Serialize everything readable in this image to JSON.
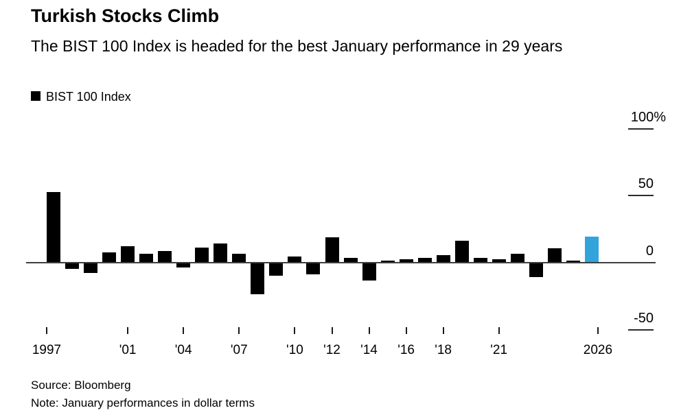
{
  "header": {
    "title": "Turkish Stocks Climb",
    "subtitle": "The BIST 100 Index is headed for the best January performance in 29 years"
  },
  "legend": {
    "label": "BIST 100 Index",
    "swatch_color": "#000000"
  },
  "chart_data": {
    "type": "bar",
    "title": "Turkish Stocks Climb",
    "series_name": "BIST 100 Index",
    "unit": "percent, January performance",
    "x": [
      1997,
      1998,
      1999,
      2000,
      2001,
      2002,
      2003,
      2004,
      2005,
      2006,
      2007,
      2008,
      2009,
      2010,
      2011,
      2012,
      2013,
      2014,
      2015,
      2016,
      2017,
      2018,
      2019,
      2020,
      2021,
      2022,
      2023,
      2024,
      2025,
      2026
    ],
    "values": [
      52,
      -4,
      -7,
      7,
      12,
      6,
      8,
      -3,
      11,
      14,
      6,
      -23,
      -9,
      4,
      -8,
      18.5,
      3,
      -13,
      1,
      2,
      3,
      5,
      16,
      3,
      2,
      6,
      -10,
      10,
      1,
      19
    ],
    "bar_color": "#000000",
    "highlight": {
      "year": 2026,
      "color": "#33a3dc"
    },
    "ylim": [
      -50,
      100
    ],
    "y_ticks": [
      {
        "value": 100,
        "label": "100%"
      },
      {
        "value": 50,
        "label": "50"
      },
      {
        "value": 0,
        "label": "0"
      },
      {
        "value": -50,
        "label": "-50"
      }
    ],
    "x_ticks": [
      {
        "year": 1997,
        "label": "1997"
      },
      {
        "year": 2001,
        "label": "'01"
      },
      {
        "year": 2004,
        "label": "'04"
      },
      {
        "year": 2007,
        "label": "'07"
      },
      {
        "year": 2010,
        "label": "'10"
      },
      {
        "year": 2012,
        "label": "'12"
      },
      {
        "year": 2014,
        "label": "'14"
      },
      {
        "year": 2016,
        "label": "'16"
      },
      {
        "year": 2018,
        "label": "'18"
      },
      {
        "year": 2021,
        "label": "'21"
      },
      {
        "year": 2026,
        "label": "2026"
      }
    ],
    "legend_position": "top-left",
    "y_axis_side": "right",
    "grid": false
  },
  "footer": {
    "source": "Source: Bloomberg",
    "note": "Note: January performances in dollar terms"
  }
}
